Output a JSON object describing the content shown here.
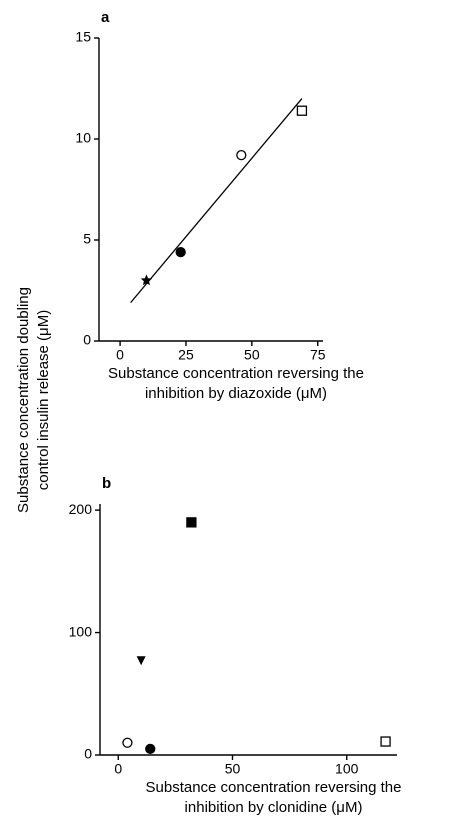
{
  "chart_data": [
    {
      "type": "scatter",
      "panel_label": "a",
      "ylabel": [
        "Substance concentration doubling",
        "control insulin release (μM)"
      ],
      "xlabel": [
        "Substance concentration reversing the",
        "inhibition by diazoxide (μM)"
      ],
      "x": [
        10,
        23,
        46,
        69
      ],
      "y": [
        3,
        4.4,
        9.2,
        11.4
      ],
      "markers": [
        "star",
        "circle-filled",
        "circle-open",
        "square-open"
      ],
      "fit_line": {
        "x": [
          4,
          69
        ],
        "y": [
          1.9,
          12
        ]
      },
      "xlim": [
        -8,
        77
      ],
      "ylim": [
        0,
        15
      ],
      "xticks": [
        0,
        25,
        50,
        75
      ],
      "yticks": [
        0,
        5,
        10,
        15
      ],
      "color": "#000000"
    },
    {
      "type": "scatter",
      "panel_label": "b",
      "xlabel": [
        "Substance concentration reversing the",
        "inhibition by clonidine (μM)"
      ],
      "x": [
        4,
        14,
        10,
        32,
        117
      ],
      "y": [
        10,
        5,
        77,
        190,
        11
      ],
      "markers": [
        "circle-open",
        "circle-filled",
        "triangle-down",
        "square-filled",
        "square-open"
      ],
      "xlim": [
        -8,
        122
      ],
      "ylim": [
        0,
        205
      ],
      "xticks": [
        0,
        50,
        100
      ],
      "yticks": [
        0,
        100,
        200
      ],
      "color": "#000000"
    }
  ]
}
